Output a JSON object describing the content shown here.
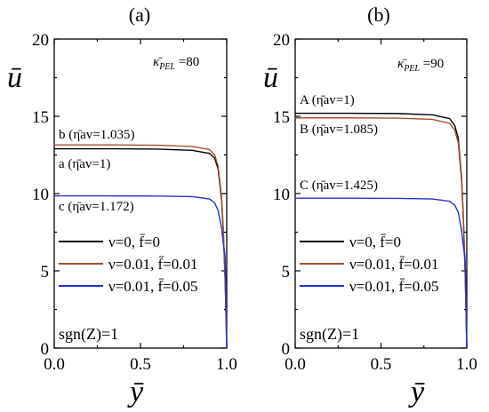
{
  "chart_data": [
    {
      "type": "line",
      "panel_label": "(a)",
      "xlabel": "ȳ",
      "ylabel": "ū",
      "xlim": [
        0,
        1
      ],
      "ylim": [
        0,
        20
      ],
      "xticks": [
        "0.0",
        "0.5",
        "1.0"
      ],
      "yticks": [
        "0",
        "5",
        "10",
        "15",
        "20"
      ],
      "parameter_label": "κ̄PEL =80",
      "parameter_main": "κ̄",
      "parameter_sub": "PEL",
      "parameter_value": " =80",
      "condition_label": "sgn(Z)=1",
      "series": [
        {
          "name": "ν=0, f̄=0",
          "color": "#000000",
          "plateau": 12.9,
          "curve_labels": [
            "a (η̄av=1)"
          ],
          "x": [
            0,
            0.3,
            0.6,
            0.8,
            0.9,
            0.93,
            0.95,
            0.97,
            0.98,
            0.99,
            0.995,
            1.0
          ],
          "y": [
            12.9,
            12.9,
            12.88,
            12.8,
            12.6,
            12.3,
            11.6,
            9.6,
            7.6,
            4.6,
            2.5,
            0
          ]
        },
        {
          "name": "ν=0.01, f̄=0.01",
          "color": "#a0522d",
          "plateau": 13.15,
          "curve_labels": [
            "b (η̄av=1.035)"
          ],
          "x": [
            0,
            0.3,
            0.6,
            0.8,
            0.9,
            0.93,
            0.95,
            0.97,
            0.98,
            0.99,
            0.995,
            1.0
          ],
          "y": [
            13.15,
            13.15,
            13.13,
            13.05,
            12.85,
            12.5,
            11.8,
            9.8,
            7.8,
            4.7,
            2.6,
            0
          ]
        },
        {
          "name": "ν=0.01, f̄=0.05",
          "color": "#2233cc",
          "plateau": 9.85,
          "curve_labels": [
            "c (η̄av=1.172)"
          ],
          "x": [
            0,
            0.3,
            0.6,
            0.8,
            0.9,
            0.93,
            0.95,
            0.97,
            0.98,
            0.99,
            0.995,
            1.0
          ],
          "y": [
            9.85,
            9.85,
            9.84,
            9.8,
            9.65,
            9.4,
            8.9,
            7.8,
            6.8,
            6.0,
            4.0,
            0
          ]
        }
      ]
    },
    {
      "type": "line",
      "panel_label": "(b)",
      "xlabel": "ȳ",
      "ylabel": "ū",
      "xlim": [
        0,
        1
      ],
      "ylim": [
        0,
        20
      ],
      "xticks": [
        "0.0",
        "0.5",
        "1.0"
      ],
      "yticks": [
        "0",
        "5",
        "10",
        "15",
        "20"
      ],
      "parameter_label": "κ̄PEL =90",
      "parameter_main": "κ̄",
      "parameter_sub": "PEL",
      "parameter_value": " =90",
      "condition_label": "sgn(Z)=1",
      "series": [
        {
          "name": "ν=0, f̄=0",
          "color": "#000000",
          "plateau": 15.2,
          "curve_labels": [
            "A (η̄av=1)"
          ],
          "x": [
            0,
            0.3,
            0.6,
            0.8,
            0.9,
            0.93,
            0.95,
            0.97,
            0.98,
            0.99,
            0.995,
            1.0
          ],
          "y": [
            15.2,
            15.2,
            15.18,
            15.1,
            14.85,
            14.4,
            13.6,
            11.0,
            8.5,
            5.0,
            2.7,
            0
          ]
        },
        {
          "name": "ν=0.01, f̄=0.01",
          "color": "#a0522d",
          "plateau": 14.9,
          "curve_labels": [
            "B (η̄av=1.085)"
          ],
          "x": [
            0,
            0.3,
            0.6,
            0.8,
            0.9,
            0.93,
            0.95,
            0.97,
            0.98,
            0.99,
            0.995,
            1.0
          ],
          "y": [
            14.9,
            14.9,
            14.88,
            14.8,
            14.55,
            14.1,
            13.3,
            10.8,
            8.3,
            4.9,
            2.6,
            0
          ]
        },
        {
          "name": "ν=0.01, f̄=0.05",
          "color": "#2233cc",
          "plateau": 9.7,
          "curve_labels": [
            "C (η̄av=1.425)"
          ],
          "x": [
            0,
            0.3,
            0.6,
            0.8,
            0.9,
            0.93,
            0.95,
            0.97,
            0.98,
            0.99,
            0.995,
            1.0
          ],
          "y": [
            9.7,
            9.7,
            9.69,
            9.65,
            9.5,
            9.25,
            8.8,
            7.6,
            6.6,
            5.8,
            3.8,
            0
          ]
        }
      ]
    }
  ]
}
